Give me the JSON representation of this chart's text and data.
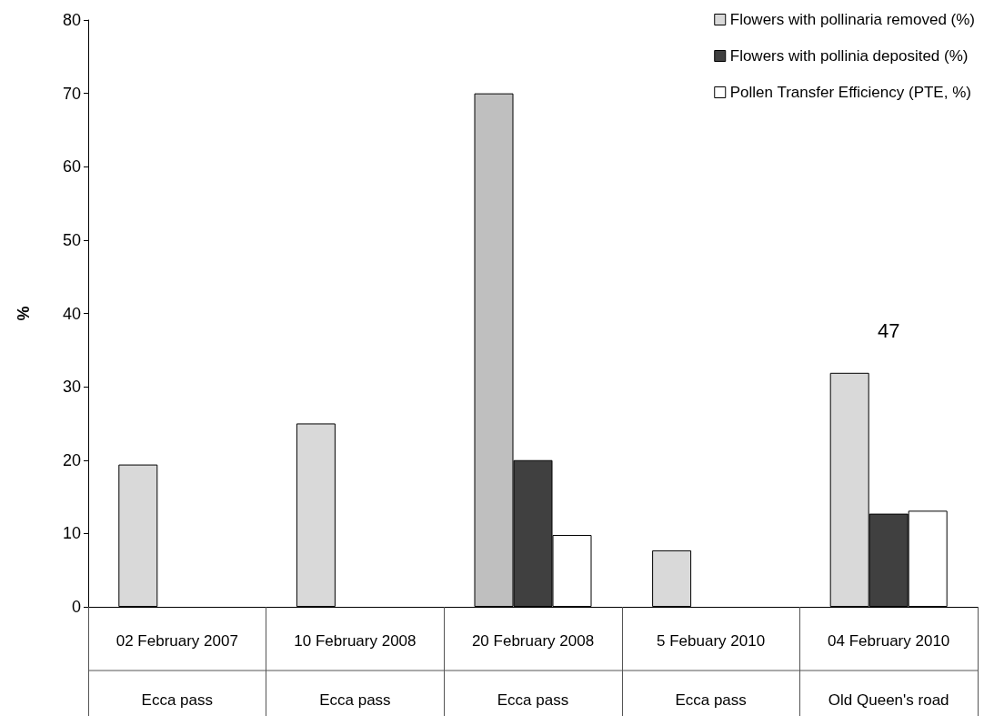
{
  "chart_data": {
    "type": "bar",
    "ylabel": "%",
    "categories": [
      "02 February 2007\nEcca pass",
      "10 February 2008\nEcca pass",
      "20 February 2008\nEcca pass",
      "5 Febuary 2010\nEcca pass",
      "04 February 2010\nOld Queen's road"
    ],
    "series": [
      {
        "name": "Flowers with pollinaria removed (%)",
        "color": "#d9d9d9",
        "colors": [
          "#d9d9d9",
          "#d9d9d9",
          "#bfbfbf",
          "#d9d9d9",
          "#d9d9d9"
        ],
        "values": [
          19.4,
          25,
          70,
          7.7,
          31.9
        ]
      },
      {
        "name": "Flowers with pollinia deposited (%)",
        "color": "#404040",
        "values": [
          null,
          null,
          20,
          null,
          12.7
        ]
      },
      {
        "name": "Pollen Transfer Efficiency (PTE, %)",
        "color": "#ffffff",
        "values": [
          null,
          null,
          9.8,
          null,
          13.1
        ]
      }
    ],
    "ylim": [
      0,
      80
    ],
    "yticks": [
      0,
      10,
      20,
      30,
      40,
      50,
      60,
      70,
      80
    ],
    "annotations": [
      "47"
    ],
    "grid": false,
    "legend": "top right"
  }
}
